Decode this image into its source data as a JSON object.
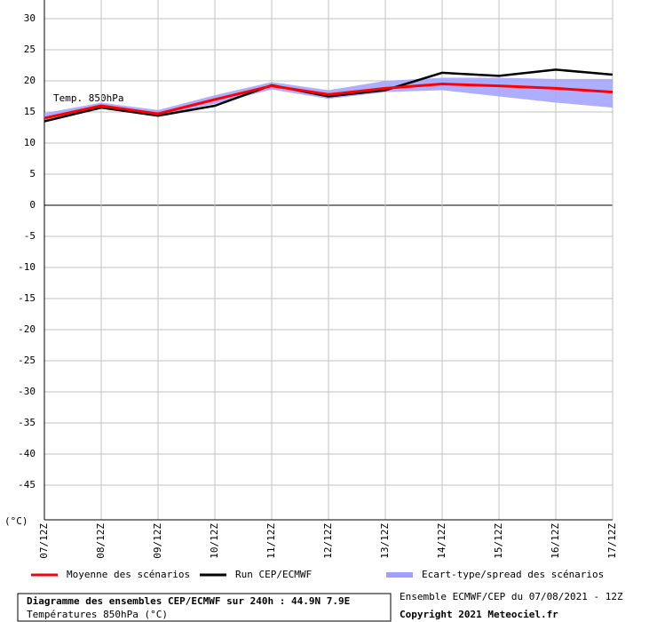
{
  "chart_data": {
    "type": "line",
    "title": "Diagramme des ensembles CEP/ECMWF sur 240h : 44.9N 7.9E",
    "subtitle": "Températures 850hPa (°C)",
    "source": "Ensemble ECMWF/CEP du 07/08/2021 - 12Z",
    "copyright": "Copyright 2021 Meteociel.fr",
    "annotation": "Temp. 850hPa",
    "y_unit": "(°C)",
    "categories": [
      "07/12Z",
      "08/12Z",
      "09/12Z",
      "10/12Z",
      "11/12Z",
      "12/12Z",
      "13/12Z",
      "14/12Z",
      "15/12Z",
      "16/12Z",
      "17/12Z"
    ],
    "ylim": [
      -50,
      30
    ],
    "yticks": [
      -45,
      -40,
      -35,
      -30,
      -25,
      -20,
      -15,
      -10,
      -5,
      0,
      5,
      10,
      15,
      20,
      25,
      30
    ],
    "grid": true,
    "band": {
      "name": "Ecart-type/spread des scénarios",
      "color": "#a0a0ff",
      "high": [
        14.8,
        16.5,
        15.3,
        17.7,
        19.8,
        18.5,
        20,
        20.5,
        20.5,
        20.3,
        20.3
      ],
      "low": [
        13.8,
        15.7,
        14.5,
        16.3,
        18.6,
        17.1,
        18.2,
        18.5,
        17.5,
        16.5,
        15.7
      ]
    },
    "series": [
      {
        "name": "Moyenne des scénarios",
        "color": "#ff0000",
        "values": [
          14,
          16,
          14.7,
          17,
          19.2,
          17.8,
          18.8,
          19.5,
          19.2,
          18.8,
          18.2
        ]
      },
      {
        "name": "Run CEP/ECMWF",
        "color": "#000000",
        "values": [
          13.5,
          15.7,
          14.4,
          16,
          19.3,
          17.5,
          18.5,
          21.3,
          20.8,
          21.8,
          21
        ]
      }
    ]
  }
}
